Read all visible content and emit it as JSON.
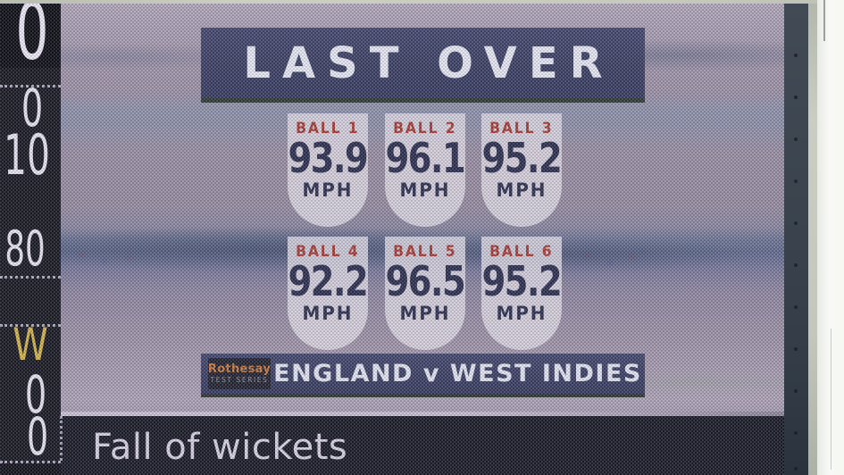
{
  "screen": {
    "last_over_panel": {
      "title": "LAST OVER",
      "balls": [
        {
          "label": "BALL 1",
          "speed": "93.9",
          "unit": "MPH"
        },
        {
          "label": "BALL 2",
          "speed": "96.1",
          "unit": "MPH"
        },
        {
          "label": "BALL 3",
          "speed": "95.2",
          "unit": "MPH"
        },
        {
          "label": "BALL 4",
          "speed": "92.2",
          "unit": "MPH"
        },
        {
          "label": "BALL 5",
          "speed": "96.5",
          "unit": "MPH"
        },
        {
          "label": "BALL 6",
          "speed": "95.2",
          "unit": "MPH"
        }
      ],
      "footer": {
        "sponsor_name": "Rothesay",
        "sponsor_series": "TEST SERIES",
        "match_title": "ENGLAND v WEST INDIES"
      }
    },
    "left_column": {
      "values": [
        "0",
        "0",
        "10",
        "80",
        "W",
        "0",
        "0"
      ]
    },
    "footer_caption": "Fall of wickets"
  },
  "colors": {
    "banner_navy": "#3a3f63",
    "ball_label_red": "#a63a31",
    "speed_navy": "#2a2e4d",
    "shield_light": "#e0ddE6",
    "sponsor_orange": "#ca7c41",
    "wicket_yellow": "#d3b54b",
    "screen_mauve": "#9a90a4",
    "bottom_panel_dark": "#161923",
    "caption_white": "#d7d4e5"
  }
}
